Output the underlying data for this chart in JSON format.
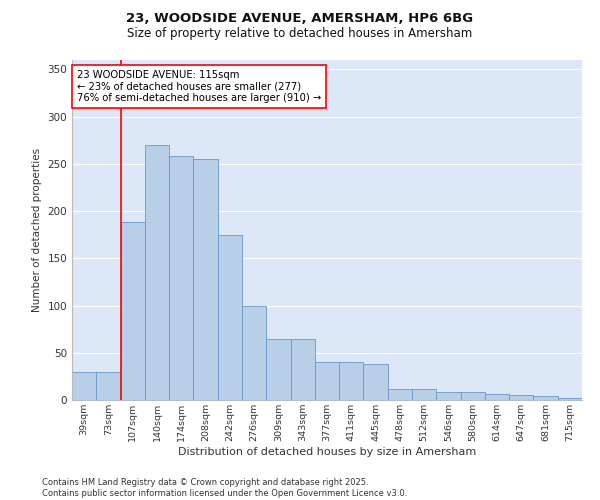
{
  "title_line1": "23, WOODSIDE AVENUE, AMERSHAM, HP6 6BG",
  "title_line2": "Size of property relative to detached houses in Amersham",
  "xlabel": "Distribution of detached houses by size in Amersham",
  "ylabel": "Number of detached properties",
  "categories": [
    "39sqm",
    "73sqm",
    "107sqm",
    "140sqm",
    "174sqm",
    "208sqm",
    "242sqm",
    "276sqm",
    "309sqm",
    "343sqm",
    "377sqm",
    "411sqm",
    "445sqm",
    "478sqm",
    "512sqm",
    "546sqm",
    "580sqm",
    "614sqm",
    "647sqm",
    "681sqm",
    "715sqm"
  ],
  "values": [
    30,
    30,
    188,
    270,
    258,
    255,
    175,
    100,
    65,
    65,
    40,
    40,
    38,
    12,
    12,
    8,
    8,
    6,
    5,
    4,
    2
  ],
  "bar_color": "#b8cfe8",
  "bar_edge_color": "#6699cc",
  "red_line_x": 1.5,
  "annotation_text": "23 WOODSIDE AVENUE: 115sqm\n← 23% of detached houses are smaller (277)\n76% of semi-detached houses are larger (910) →",
  "ylim": [
    0,
    360
  ],
  "yticks": [
    0,
    50,
    100,
    150,
    200,
    250,
    300,
    350
  ],
  "plot_bg_color": "#dce8f8",
  "fig_bg_color": "#ffffff",
  "grid_color": "#ffffff",
  "footer_line1": "Contains HM Land Registry data © Crown copyright and database right 2025.",
  "footer_line2": "Contains public sector information licensed under the Open Government Licence v3.0."
}
